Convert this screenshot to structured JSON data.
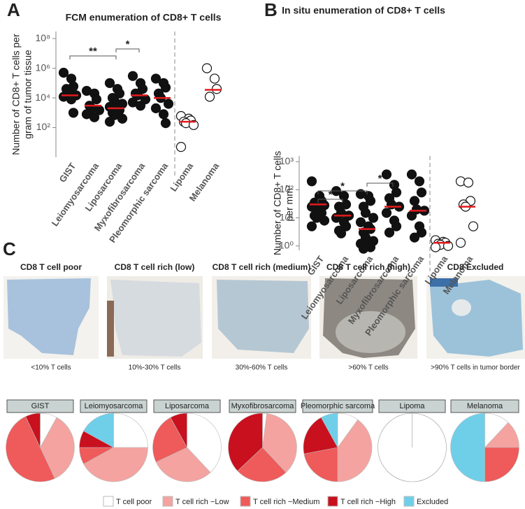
{
  "panel_labels": [
    "A",
    "B",
    "C"
  ],
  "chart_data": [
    {
      "type": "dotplot",
      "title": "FCM enumeration of CD8+ T cells",
      "ylabel": [
        "Number of CD8+ T cells per",
        "gram of tumor tissue"
      ],
      "log_y": true,
      "ylim": [
        1,
        300000000
      ],
      "yticks": [
        {
          "value": 100,
          "label": "10²"
        },
        {
          "value": 10000,
          "label": "10⁴"
        },
        {
          "value": 1000000,
          "label": "10⁶"
        },
        {
          "value": 100000000,
          "label": "10⁸"
        }
      ],
      "categories": [
        "GIST",
        "Leiomyosarcoma",
        "Liposarcoma",
        "Myxofibrosarcoma",
        "Pleomorphic sarcoma",
        "Lipoma",
        "Melanoma"
      ],
      "points": [
        [
          500000,
          200000,
          60000,
          40000,
          25000,
          15000,
          12000,
          8000,
          1000
        ],
        [
          30000,
          20000,
          8000,
          3000,
          2000,
          1500,
          800,
          500
        ],
        [
          100000,
          40000,
          20000,
          10000,
          6000,
          4000,
          2500,
          2000,
          1500,
          1000,
          700,
          400,
          250
        ],
        [
          300000,
          100000,
          40000,
          20000,
          15000,
          8000,
          5000,
          3000
        ],
        [
          200000,
          100000,
          50000,
          20000,
          10000,
          4000,
          2000,
          800,
          200
        ],
        [
          600,
          400,
          300,
          250,
          200,
          150,
          5
        ],
        [
          1000000,
          200000,
          40000,
          12000
        ]
      ],
      "medians": [
        15000,
        3000,
        2000,
        15000,
        10000,
        250,
        35000
      ],
      "filled": [
        true,
        true,
        true,
        true,
        true,
        false,
        false
      ],
      "annotations": [
        {
          "label": "**",
          "between": [
            0,
            2
          ]
        },
        {
          "label": "*",
          "between": [
            2,
            3
          ]
        }
      ]
    },
    {
      "type": "dotplot",
      "title": "In situ enumeration of CD8+ T cells",
      "ylabel": [
        "Number of CD8+ T cells",
        "per mm²"
      ],
      "log_y": true,
      "ylim": [
        0.7,
        1600
      ],
      "yticks": [
        {
          "value": 1,
          "label": "10⁰"
        },
        {
          "value": 10,
          "label": "10¹"
        },
        {
          "value": 100,
          "label": "10²"
        },
        {
          "value": 1000,
          "label": "10³"
        }
      ],
      "categories": [
        "GIST",
        "Leiomyosarcoma",
        "Liposarcoma",
        "Myxofibrosarcoma",
        "Pleomorphic sarcoma",
        "Lipoma",
        "Melanoma"
      ],
      "points": [
        [
          200,
          60,
          40,
          35,
          30,
          28,
          25,
          20,
          15,
          12,
          10,
          8,
          5
        ],
        [
          90,
          60,
          30,
          25,
          15,
          12,
          10,
          7,
          5,
          3.5,
          2.8
        ],
        [
          70,
          60,
          40,
          25,
          15,
          10,
          7,
          5,
          4,
          3,
          2,
          1.5,
          1.2,
          1,
          0.9,
          0.8
        ],
        [
          350,
          150,
          80,
          50,
          30,
          25,
          15,
          8,
          5,
          3
        ],
        [
          350,
          200,
          80,
          40,
          20,
          18,
          12,
          5,
          3,
          2
        ],
        [
          1.6,
          1.4,
          1.3,
          1.2,
          1.1,
          1,
          0.9
        ],
        [
          200,
          180,
          40,
          30,
          25,
          5,
          1.3
        ]
      ],
      "medians": [
        30,
        12,
        4,
        25,
        18,
        1.3,
        25
      ],
      "filled": [
        true,
        true,
        true,
        true,
        true,
        false,
        false
      ],
      "annotations": [
        {
          "label": "*",
          "between": [
            0,
            1
          ]
        },
        {
          "label": "*",
          "between": [
            0,
            2
          ]
        },
        {
          "label": "*",
          "between": [
            2,
            3
          ]
        }
      ]
    },
    {
      "type": "pie",
      "categories": [
        "T cell poor",
        "T cell rich −Low",
        "T cell rich −Medium",
        "T cell rich −High",
        "Excluded"
      ],
      "colors": [
        "#ffffff",
        "#f4a3a0",
        "#ef5a5a",
        "#c8101e",
        "#6fcfe9"
      ],
      "panels": [
        {
          "title": "GIST",
          "values": [
            8,
            35,
            50,
            7,
            0
          ]
        },
        {
          "title": "Leiomyosarcoma",
          "values": [
            25,
            42,
            8,
            8,
            17
          ]
        },
        {
          "title": "Liposarcoma",
          "values": [
            38,
            30,
            24,
            8,
            0
          ]
        },
        {
          "title": "Myxofibrosarcoma",
          "values": [
            2,
            36,
            25,
            37,
            0
          ]
        },
        {
          "title": "Pleomorphic sarcoma",
          "values": [
            10,
            40,
            22,
            20,
            8
          ]
        },
        {
          "title": "Lipoma",
          "values": [
            100,
            0,
            0,
            0,
            0
          ]
        },
        {
          "title": "Melanoma",
          "values": [
            12,
            13,
            25,
            0,
            50
          ]
        }
      ]
    }
  ],
  "images": [
    {
      "title": "CD8 T cell poor",
      "caption": "<10% T cells"
    },
    {
      "title": "CD8 T cell rich (low)",
      "caption": "10%-30% T cells"
    },
    {
      "title": "CD8 T cell rich (medium)",
      "caption": "30%-60% T cells"
    },
    {
      "title": "CD8 T cell rich (high)",
      "caption": ">60% T cells"
    },
    {
      "title": "CD8 Excluded",
      "caption": ">90% T cells in tumor border"
    }
  ]
}
